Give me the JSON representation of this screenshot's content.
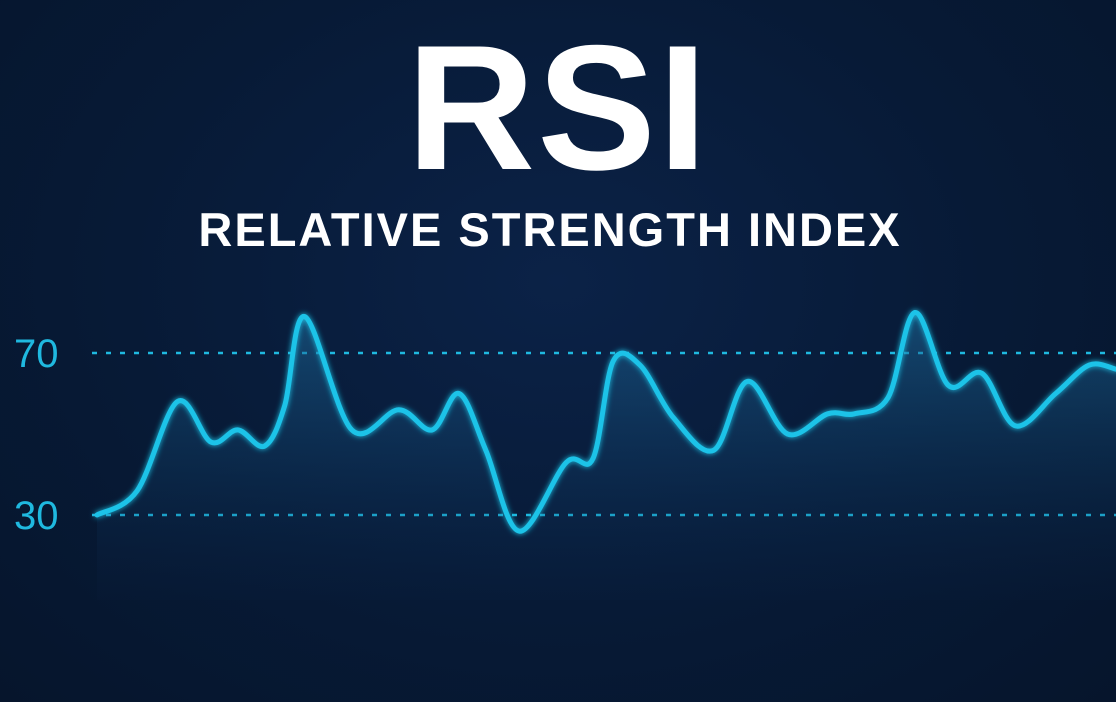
{
  "colors": {
    "background": "#071a36",
    "line": "#1ec3e8",
    "threshold": "#1fb9e0",
    "text": "#ffffff"
  },
  "chart_data": {
    "type": "line",
    "title": "RSI",
    "subtitle": "RELATIVE STRENGTH INDEX",
    "xlabel": "",
    "ylabel": "",
    "ylim": [
      0,
      90
    ],
    "yticks": [
      "70",
      "30"
    ],
    "thresholds": [
      70,
      30
    ],
    "grid": false,
    "legend": "none",
    "series": [
      {
        "x": [
          0,
          6,
          12,
          17,
          21,
          25,
          28,
          31,
          38,
          45,
          50,
          54,
          58,
          63,
          70,
          74,
          77,
          81,
          86,
          92,
          97,
          103,
          109,
          113,
          118,
          122,
          127,
          132,
          137,
          143,
          148,
          152
        ],
        "values": [
          30,
          36,
          58,
          48,
          51,
          47,
          57,
          79,
          51,
          56,
          51,
          60,
          46,
          26,
          43,
          44,
          68,
          67,
          54,
          46,
          63,
          50,
          55,
          55,
          59,
          80,
          62,
          65,
          52,
          60,
          67,
          66
        ]
      }
    ]
  }
}
